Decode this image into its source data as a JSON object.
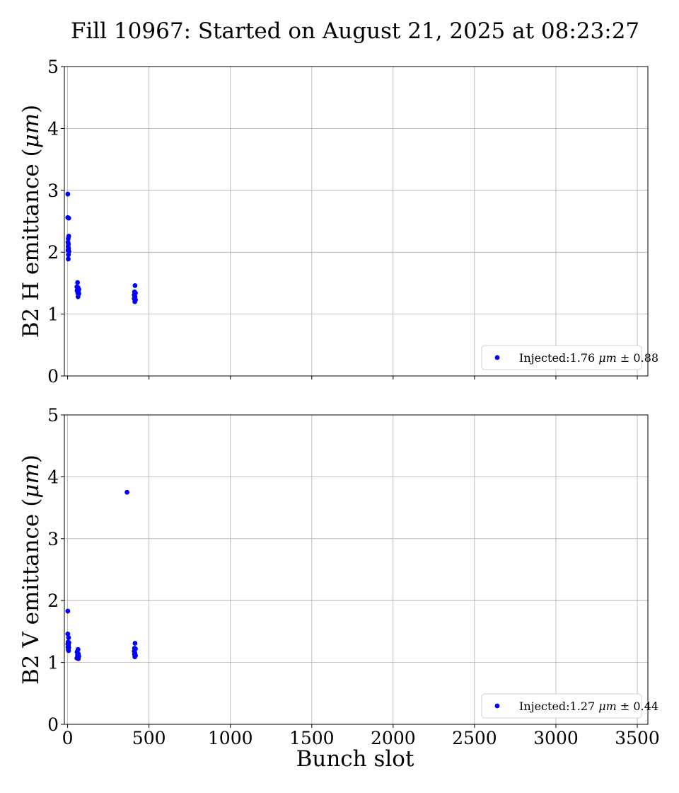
{
  "figure": {
    "title": "Fill 10967: Started on August 21, 2025 at 08:23:27",
    "xlabel": "Bunch slot"
  },
  "chart_data": [
    {
      "type": "scatter",
      "ylabel_main": "B2 H emittance (",
      "ylabel_unit": "μm",
      "ylabel_close": ")",
      "xlim": [
        -20,
        3565
      ],
      "ylim": [
        0,
        5
      ],
      "xticks": [
        0,
        500,
        1000,
        1500,
        2000,
        2500,
        3000,
        3500
      ],
      "yticks": [
        0,
        1,
        2,
        3,
        4,
        5
      ],
      "grid": true,
      "legend_position": "lower right",
      "color": "#0000ff",
      "series": [
        {
          "legend_prefix": "Injected:1.76 ",
          "legend_unit": "μm",
          "legend_suffix": " ± 0.88",
          "points": [
            [
              1,
              2.94
            ],
            [
              1,
              2.56
            ],
            [
              7,
              2.55
            ],
            [
              4,
              2.22
            ],
            [
              7,
              2.26
            ],
            [
              2,
              2.16
            ],
            [
              5,
              2.13
            ],
            [
              3,
              2.09
            ],
            [
              6,
              2.06
            ],
            [
              2,
              2.03
            ],
            [
              8,
              2.01
            ],
            [
              5,
              1.96
            ],
            [
              4,
              1.89
            ],
            [
              61,
              1.51
            ],
            [
              57,
              1.44
            ],
            [
              64,
              1.43
            ],
            [
              69,
              1.4
            ],
            [
              58,
              1.38
            ],
            [
              66,
              1.36
            ],
            [
              62,
              1.34
            ],
            [
              69,
              1.33
            ],
            [
              64,
              1.28
            ],
            [
              414,
              1.46
            ],
            [
              411,
              1.36
            ],
            [
              417,
              1.34
            ],
            [
              409,
              1.31
            ],
            [
              414,
              1.28
            ],
            [
              409,
              1.25
            ],
            [
              417,
              1.23
            ],
            [
              413,
              1.2
            ]
          ]
        }
      ]
    },
    {
      "type": "scatter",
      "ylabel_main": "B2 V emittance (",
      "ylabel_unit": "μm",
      "ylabel_close": ")",
      "xlim": [
        -20,
        3565
      ],
      "ylim": [
        0,
        5
      ],
      "xticks": [
        0,
        500,
        1000,
        1500,
        2000,
        2500,
        3000,
        3500
      ],
      "yticks": [
        0,
        1,
        2,
        3,
        4,
        5
      ],
      "grid": true,
      "legend_position": "lower right",
      "color": "#0000ff",
      "series": [
        {
          "legend_prefix": "Injected:1.27 ",
          "legend_unit": "μm",
          "legend_suffix": " ± 0.44",
          "points": [
            [
              365,
              3.75
            ],
            [
              1,
              1.83
            ],
            [
              1,
              1.46
            ],
            [
              6,
              1.4
            ],
            [
              3,
              1.33
            ],
            [
              8,
              1.32
            ],
            [
              1,
              1.3
            ],
            [
              5,
              1.28
            ],
            [
              2,
              1.25
            ],
            [
              7,
              1.24
            ],
            [
              4,
              1.21
            ],
            [
              6,
              1.19
            ],
            [
              64,
              1.21
            ],
            [
              58,
              1.17
            ],
            [
              66,
              1.14
            ],
            [
              61,
              1.12
            ],
            [
              69,
              1.1
            ],
            [
              63,
              1.08
            ],
            [
              57,
              1.07
            ],
            [
              66,
              1.06
            ],
            [
              414,
              1.31
            ],
            [
              411,
              1.23
            ],
            [
              417,
              1.22
            ],
            [
              409,
              1.18
            ],
            [
              414,
              1.15
            ],
            [
              411,
              1.13
            ],
            [
              417,
              1.11
            ],
            [
              413,
              1.09
            ]
          ]
        }
      ]
    }
  ]
}
